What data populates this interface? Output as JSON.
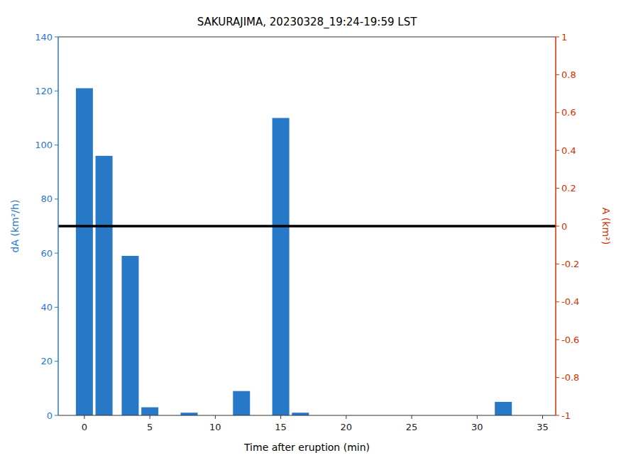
{
  "chart_data": {
    "type": "bar",
    "title": "SAKURAJIMA, 20230328_19:24-19:59 LST",
    "xlabel": "Time after eruption (min)",
    "ylabel": "dA (km²/h)",
    "y2label": "A (km²)",
    "x": [
      0,
      1.5,
      3.5,
      5,
      8,
      12,
      15,
      16.5,
      32
    ],
    "values": [
      121,
      96,
      59,
      3,
      1,
      9,
      110,
      1,
      5
    ],
    "color": "#2878C8",
    "xlim": [
      -2,
      36
    ],
    "ylim": [
      0,
      140
    ],
    "y2lim": [
      -1,
      1
    ],
    "xticks": [
      0,
      5,
      10,
      15,
      20,
      25,
      30,
      35
    ],
    "yticks": [
      0,
      20,
      40,
      60,
      80,
      100,
      120,
      140
    ],
    "y2ticks": [
      -1,
      -0.8,
      -0.6,
      -0.4,
      -0.2,
      0,
      0.2,
      0.4,
      0.6,
      0.8,
      1
    ],
    "hline": 70,
    "grid": false
  }
}
